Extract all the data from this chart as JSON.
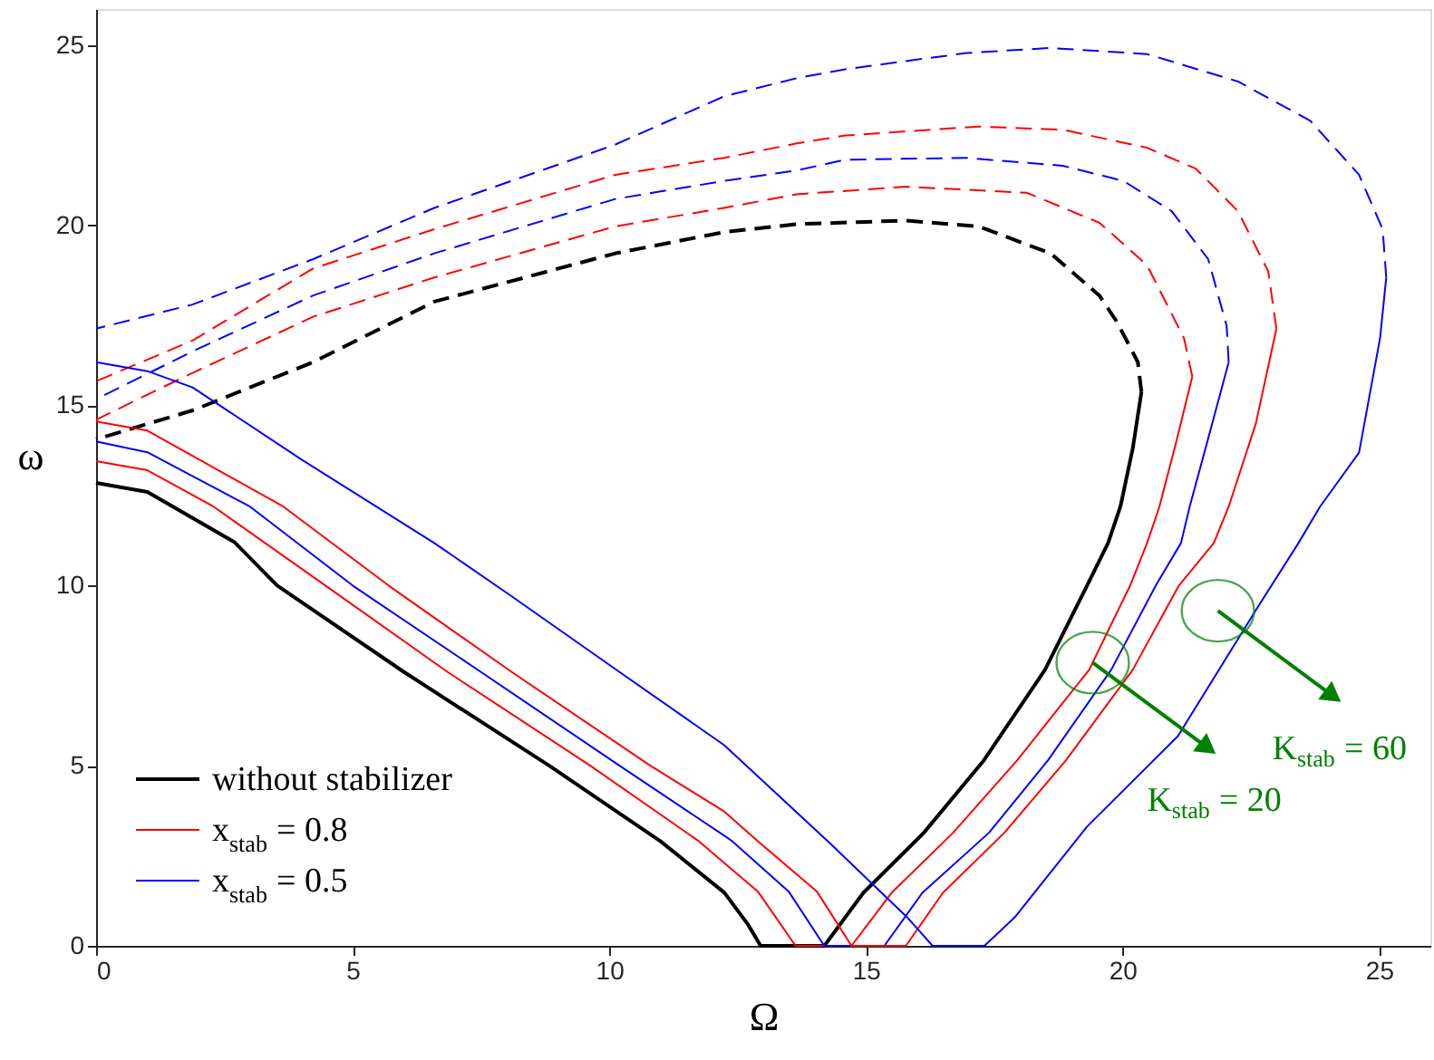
{
  "chart_data": {
    "type": "line",
    "xlabel": "Ω",
    "ylabel": "ω",
    "xlim": [
      0,
      26
    ],
    "ylim": [
      0,
      26
    ],
    "xticks": [
      0,
      5,
      10,
      15,
      20,
      25
    ],
    "yticks": [
      0,
      5,
      10,
      15,
      20,
      25
    ],
    "grid": false,
    "legend": "bottom left",
    "marker": "none",
    "series": [
      {
        "name": "without stabilizer",
        "color": "#000000",
        "line_style": "solid",
        "x": [
          0,
          1,
          2.7,
          3.53,
          6,
          8.83,
          11,
          12.24,
          12.7,
          12.95,
          14.19,
          14.95,
          16.13,
          17.3,
          18.49,
          19.31,
          19.72,
          19.96,
          20.2,
          20.37
        ],
        "values": [
          12.85,
          12.6,
          11.2,
          10.0,
          7.6,
          5.0,
          2.9,
          1.48,
          0.6,
          0,
          0,
          1.47,
          3.14,
          5.15,
          7.66,
          10.0,
          11.18,
          12.19,
          13.8,
          15.37
        ]
      },
      {
        "color": "#000000",
        "line_style": "dashed",
        "x": [
          20.37,
          20.3,
          19.9,
          19.55,
          18.6,
          17.19,
          15.78,
          13.65,
          12.24,
          10.12,
          6.59,
          4.23,
          1.88,
          0
        ],
        "values": [
          15.37,
          16.2,
          17.3,
          18.05,
          19.22,
          19.97,
          20.13,
          20.03,
          19.81,
          19.22,
          17.88,
          16.2,
          14.86,
          14.06
        ]
      },
      {
        "name": "x$_{stab}$ = 0.8",
        "color": "#ff0000",
        "line_style": "solid",
        "x": [
          0,
          1,
          2.29,
          4.47,
          6.85,
          9.63,
          11.75,
          12.24,
          12.9,
          13.63,
          14.72,
          15.5,
          16.7,
          17.95,
          19.07,
          19.35,
          20.15,
          20.48,
          20.72,
          21.05,
          21.36
        ],
        "values": [
          13.45,
          13.2,
          12.19,
          10.0,
          7.6,
          5.0,
          2.9,
          2.3,
          1.5,
          0,
          0,
          1.47,
          3.14,
          5.15,
          7.16,
          7.66,
          10.0,
          11.18,
          12.19,
          14.0,
          15.8
        ]
      },
      {
        "color": "#ff0000",
        "line_style": "dashed",
        "x": [
          21.36,
          21.2,
          20.48,
          19.55,
          18.14,
          15.78,
          13.65,
          12.24,
          10.12,
          6.59,
          4.23,
          1.88,
          1.0,
          0
        ],
        "values": [
          15.8,
          16.86,
          18.89,
          20.07,
          20.9,
          21.07,
          20.86,
          20.48,
          19.97,
          18.55,
          17.46,
          15.9,
          15.3,
          14.6
        ]
      },
      {
        "name": "x$_{stab}$ = 0.5",
        "color": "#0000ff",
        "line_style": "solid",
        "x": [
          0,
          1,
          3.0,
          5.0,
          7.5,
          10.2,
          12.24,
          12.4,
          13.5,
          14.19,
          15.36,
          16.1,
          17.4,
          18.55,
          19.78,
          20.65,
          21.14,
          21.31,
          21.75,
          22.07
        ],
        "values": [
          14.0,
          13.7,
          12.19,
          10.0,
          7.6,
          5.0,
          3.06,
          2.9,
          1.5,
          0,
          0,
          1.47,
          3.14,
          5.15,
          7.66,
          10.0,
          11.18,
          12.19,
          14.5,
          16.2
        ]
      },
      {
        "color": "#0000ff",
        "line_style": "dashed",
        "x": [
          22.07,
          22.03,
          21.67,
          20.96,
          20.02,
          18.84,
          16.96,
          14.6,
          13.65,
          12.24,
          10.12,
          6.59,
          4.23,
          1.88,
          0
        ],
        "values": [
          16.2,
          17.21,
          19.06,
          20.39,
          21.23,
          21.65,
          21.87,
          21.82,
          21.52,
          21.23,
          20.73,
          19.22,
          18.05,
          16.5,
          15.17
        ]
      },
      {
        "color": "#ff0000",
        "line_style": "solid",
        "x": [
          0,
          1,
          3.65,
          5.7,
          8.1,
          10.8,
          12.24,
          12.9,
          14.05,
          14.72,
          15.78,
          16.5,
          17.7,
          18.9,
          20.2,
          21.1,
          21.78,
          22.07,
          22.6,
          23.0
        ],
        "values": [
          14.55,
          14.3,
          12.19,
          10.0,
          7.6,
          5.0,
          3.73,
          2.9,
          1.5,
          0,
          0,
          1.47,
          3.14,
          5.15,
          7.66,
          10.0,
          11.18,
          12.19,
          14.5,
          17.13
        ]
      },
      {
        "color": "#ff0000",
        "line_style": "dashed",
        "x": [
          23.0,
          22.84,
          22.25,
          21.43,
          20.48,
          18.84,
          17.19,
          14.6,
          13.65,
          12.24,
          10.12,
          6.59,
          4.23,
          1.88,
          0
        ],
        "values": [
          17.13,
          18.72,
          20.39,
          21.57,
          22.15,
          22.65,
          22.74,
          22.49,
          22.27,
          21.87,
          21.4,
          19.89,
          18.8,
          16.8,
          15.67
        ]
      },
      {
        "color": "#0000ff",
        "line_style": "solid",
        "x": [
          0,
          1,
          1.88,
          4,
          6.59,
          8.1,
          10.2,
          12.24,
          14.3,
          15.8,
          16.3,
          17.31,
          17.9,
          19.31,
          21.08,
          22.61,
          23.43,
          23.85,
          24.61,
          25.02,
          25.14
        ],
        "values": [
          16.2,
          15.95,
          15.5,
          13.5,
          11.18,
          9.7,
          7.6,
          5.57,
          2.85,
          0.8,
          0,
          0,
          0.79,
          3.31,
          5.82,
          9.34,
          11.18,
          12.19,
          13.69,
          16.87,
          18.55
        ]
      },
      {
        "color": "#0000ff",
        "line_style": "dashed",
        "x": [
          25.14,
          25.07,
          24.61,
          23.66,
          22.25,
          20.48,
          18.6,
          16.96,
          14.6,
          13.65,
          12.24,
          10.12,
          6.59,
          4.23,
          1.88,
          0
        ],
        "values": [
          18.55,
          19.89,
          21.4,
          22.9,
          23.99,
          24.75,
          24.92,
          24.78,
          24.33,
          24.08,
          23.58,
          22.24,
          20.48,
          19.06,
          17.8,
          17.13
        ]
      }
    ],
    "annotations": [
      {
        "text": "K$_{stab}$ = 20",
        "x": 19.42,
        "y": 7.86
      },
      {
        "text": "K$_{stab}$ = 60",
        "x": 21.86,
        "y": 9.3
      }
    ]
  }
}
